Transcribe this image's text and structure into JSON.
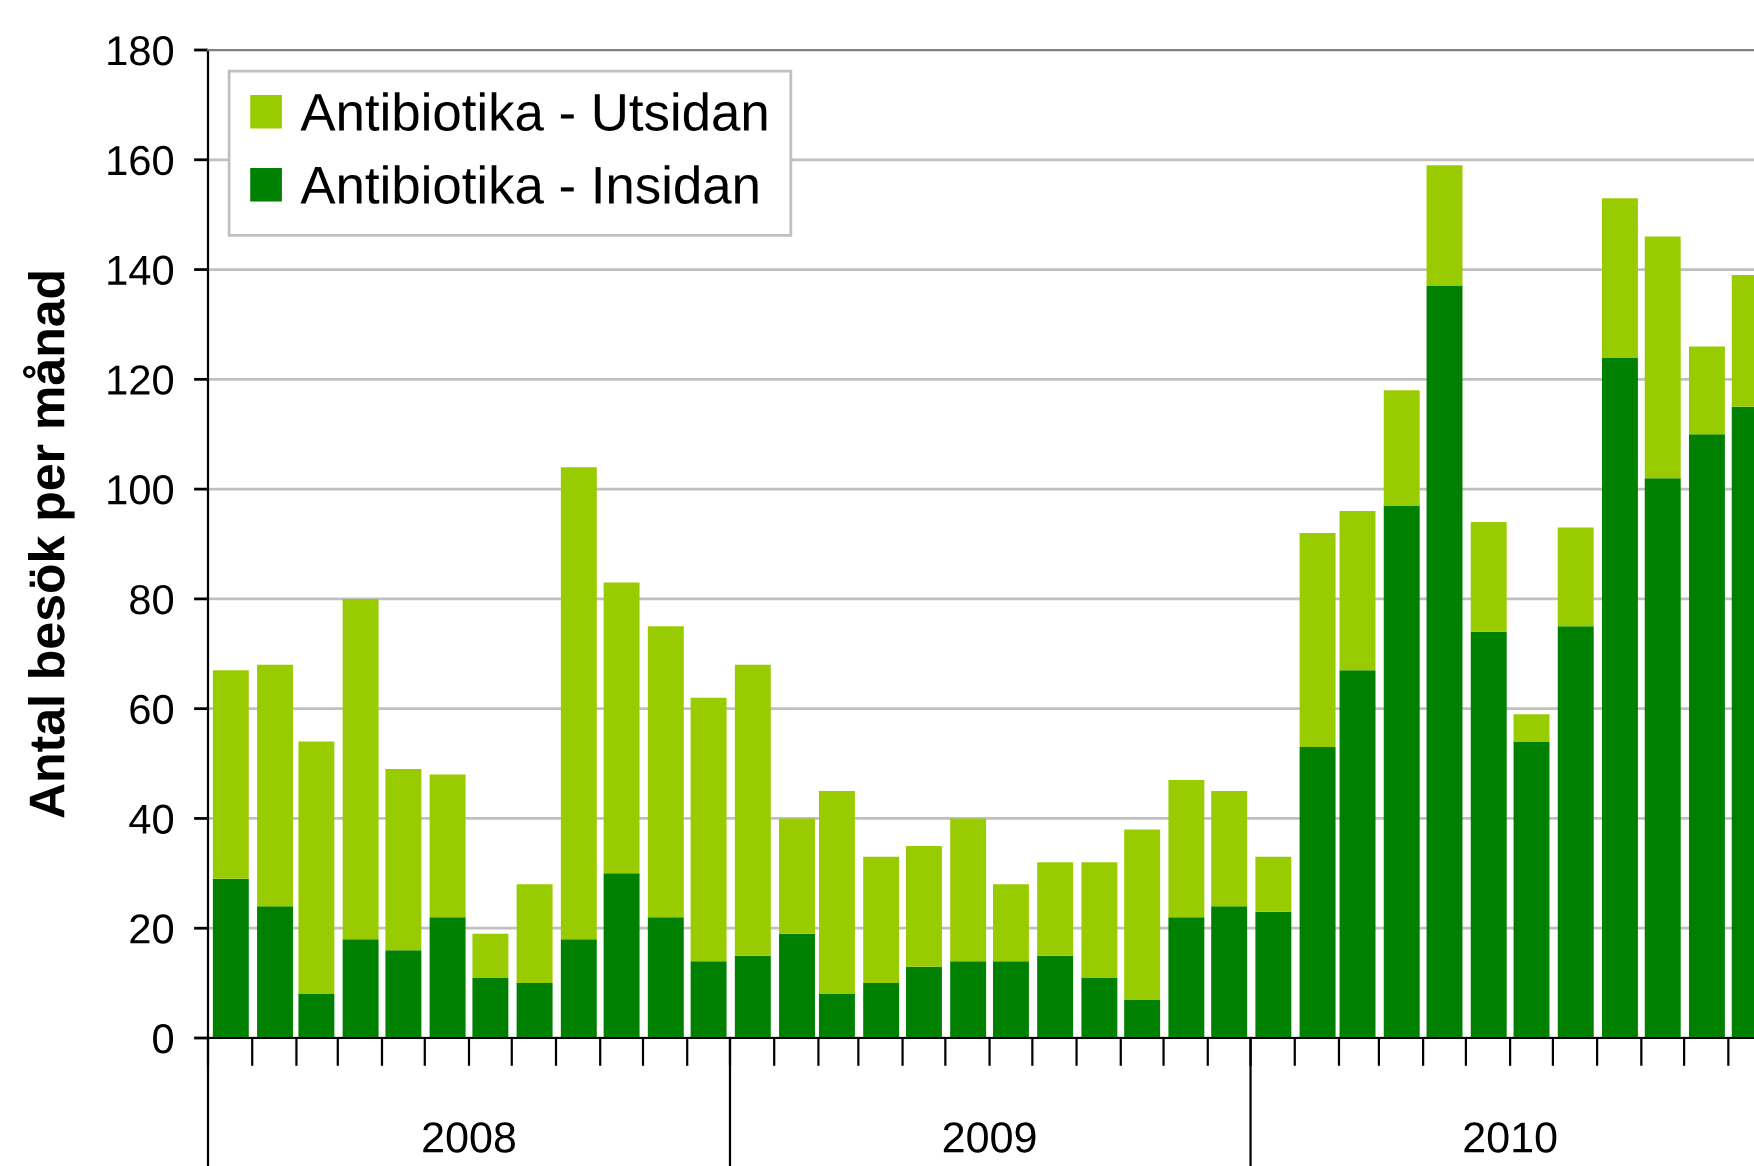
{
  "chart_data": {
    "type": "bar",
    "ylabel": "Antal besök per månad",
    "stacked": true,
    "x": [
      "2008-01",
      "2008-02",
      "2008-03",
      "2008-04",
      "2008-05",
      "2008-06",
      "2008-07",
      "2008-08",
      "2008-09",
      "2008-10",
      "2008-11",
      "2008-12",
      "2009-01",
      "2009-02",
      "2009-03",
      "2009-04",
      "2009-05",
      "2009-06",
      "2009-07",
      "2009-08",
      "2009-09",
      "2009-10",
      "2009-11",
      "2009-12",
      "2010-01",
      "2010-02",
      "2010-03",
      "2010-04",
      "2010-05",
      "2010-06",
      "2010-07",
      "2010-08",
      "2010-09",
      "2010-10",
      "2010-11",
      "2010-12"
    ],
    "series": [
      {
        "name": "Antibiotika - Insidan",
        "color": "#008000",
        "values": [
          29,
          24,
          8,
          18,
          16,
          22,
          11,
          10,
          18,
          30,
          22,
          14,
          15,
          19,
          8,
          10,
          13,
          14,
          14,
          15,
          11,
          7,
          22,
          24,
          23,
          53,
          67,
          97,
          137,
          74,
          54,
          75,
          124,
          102,
          110,
          115
        ]
      },
      {
        "name": "Antibiotika - Utsidan",
        "color": "#99cc00",
        "values": [
          38,
          44,
          46,
          62,
          33,
          26,
          8,
          18,
          86,
          53,
          53,
          48,
          53,
          21,
          37,
          23,
          22,
          26,
          14,
          17,
          21,
          31,
          25,
          21,
          10,
          39,
          29,
          21,
          22,
          20,
          5,
          18,
          29,
          44,
          16,
          24
        ]
      }
    ],
    "xlim": [
      "2007-12-16",
      "2010-12-04"
    ],
    "xticks": [
      {
        "value": "2007-12-16",
        "label": null
      },
      {
        "value": "2008-01-16",
        "label": null
      },
      {
        "value": "2008-02-16",
        "label": null
      },
      {
        "value": "2008-03-16",
        "label": null
      },
      {
        "value": "2008-04-16",
        "label": null
      },
      {
        "value": "2008-05-16",
        "label": null
      },
      {
        "value": "2008-06-16",
        "label": "2008"
      },
      {
        "value": "2008-07-16",
        "label": null
      },
      {
        "value": "2008-08-16",
        "label": null
      },
      {
        "value": "2008-09-16",
        "label": null
      },
      {
        "value": "2008-10-16",
        "label": null
      },
      {
        "value": "2008-11-16",
        "label": null
      },
      {
        "value": "2008-12-16",
        "label": null
      },
      {
        "value": "2009-01-16",
        "label": null
      },
      {
        "value": "2009-02-16",
        "label": null
      },
      {
        "value": "2009-03-16",
        "label": null
      },
      {
        "value": "2009-04-16",
        "label": null
      },
      {
        "value": "2009-05-16",
        "label": null
      },
      {
        "value": "2009-06-16",
        "label": "2009"
      },
      {
        "value": "2009-07-16",
        "label": null
      },
      {
        "value": "2009-08-16",
        "label": null
      },
      {
        "value": "2009-09-16",
        "label": null
      },
      {
        "value": "2009-10-16",
        "label": null
      },
      {
        "value": "2009-11-16",
        "label": null
      },
      {
        "value": "2009-12-16",
        "label": null
      },
      {
        "value": "2010-01-16",
        "label": null
      },
      {
        "value": "2010-02-16",
        "label": null
      },
      {
        "value": "2010-03-16",
        "label": null
      },
      {
        "value": "2010-04-16",
        "label": null
      },
      {
        "value": "2010-05-16",
        "label": null
      },
      {
        "value": "2010-06-16",
        "label": "2010"
      },
      {
        "value": "2010-07-16",
        "label": null
      },
      {
        "value": "2010-08-16",
        "label": null
      },
      {
        "value": "2010-09-16",
        "label": null
      },
      {
        "value": "2010-10-16",
        "label": null
      },
      {
        "value": "2010-11-16",
        "label": null
      }
    ],
    "ylim": [
      0,
      180
    ],
    "yticks": [
      0,
      20,
      40,
      60,
      80,
      100,
      120,
      140,
      160,
      180
    ],
    "grid": "y",
    "legend": "top left"
  }
}
